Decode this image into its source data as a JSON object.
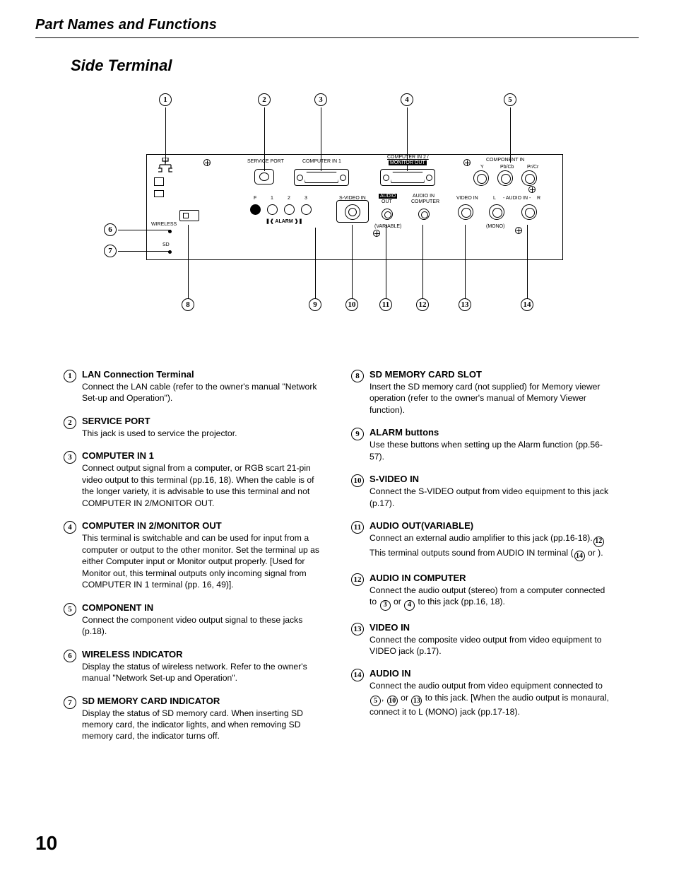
{
  "header": {
    "title": "Part Names and Functions"
  },
  "section": {
    "title": "Side Terminal"
  },
  "page_number": "10",
  "diagram": {
    "panel_labels": {
      "service_port": "SERVICE PORT",
      "computer_in_1": "COMPUTER IN 1",
      "computer_in_2a": "COMPUTER IN 2 /",
      "computer_in_2b": "MONITOR OUT",
      "component_in": "COMPONENT IN",
      "y": "Y",
      "pbcb": "Pb/Cb",
      "prcr": "Pr/Cr",
      "f": "F",
      "n1": "1",
      "n2": "2",
      "n3": "3",
      "alarm": "ALARM",
      "svideo_in": "S-VIDEO IN",
      "audio_out": "AUDIO",
      "audio_out2": "OUT",
      "variable": "(VARIABLE)",
      "audio_in_comp": "AUDIO IN",
      "audio_in_comp2": "COMPUTER",
      "video_in": "VIDEO IN",
      "audio_in_l": "L",
      "audio_in": "AUDIO IN",
      "audio_in_r": "R",
      "mono": "(MONO)",
      "wireless": "WIRELESS",
      "sd": "SD"
    },
    "callouts": {
      "c1": "1",
      "c2": "2",
      "c3": "3",
      "c4": "4",
      "c5": "5",
      "c6": "6",
      "c7": "7",
      "c8": "8",
      "c9": "9",
      "c10": "10",
      "c11": "11",
      "c12": "12",
      "c13": "13",
      "c14": "14"
    }
  },
  "items_left": [
    {
      "num": "1",
      "title": "LAN Connection Terminal",
      "body": "Connect the LAN cable (refer to the owner's manual \"Network Set-up and Operation\")."
    },
    {
      "num": "2",
      "title": "SERVICE PORT",
      "body": "This jack is used to service the projector."
    },
    {
      "num": "3",
      "title": "COMPUTER IN 1",
      "body": "Connect output signal from a computer, or RGB scart 21-pin video output to this terminal (pp.16, 18). When the cable is of the longer variety, it is advisable to use this terminal and not COMPUTER IN 2/MONITOR OUT."
    },
    {
      "num": "4",
      "title": "COMPUTER IN 2/MONITOR OUT",
      "body": "This terminal is switchable and can be used for input from a computer or output to the other monitor. Set the terminal up as either Computer input or Monitor output properly. [Used for Monitor out, this terminal outputs only incoming signal from COMPUTER IN 1 terminal (pp. 16, 49)]."
    },
    {
      "num": "5",
      "title": "COMPONENT IN",
      "body": "Connect the component video output signal to these jacks (p.18)."
    },
    {
      "num": "6",
      "title": "WIRELESS INDICATOR",
      "body": "Display the status of wireless network. Refer to the owner's manual \"Network Set-up and Operation\"."
    },
    {
      "num": "7",
      "title": "SD MEMORY CARD INDICATOR",
      "body": "Display the status of SD memory card.  When inserting SD memory card, the indicator lights, and when removing SD memory card, the indicator turns off."
    }
  ],
  "items_right": [
    {
      "num": "8",
      "title": "SD MEMORY CARD SLOT",
      "body": "Insert the SD memory card (not supplied) for Memory viewer operation (refer to the owner's manual of Memory Viewer function)."
    },
    {
      "num": "9",
      "title": "ALARM buttons",
      "body": "Use these buttons when setting up the Alarm function (pp.56-57)."
    },
    {
      "num": "10",
      "title": "S-VIDEO IN",
      "body": "Connect the S-VIDEO output from video equipment to this jack (p.17)."
    },
    {
      "num": "11",
      "title": "AUDIO OUT(VARIABLE)",
      "body_parts": [
        "Connect an external audio amplifier to this jack (pp.16-18).",
        "This terminal outputs sound from AUDIO IN terminal (",
        " or ",
        ")."
      ],
      "refs": [
        "12",
        "14"
      ]
    },
    {
      "num": "12",
      "title": "AUDIO IN COMPUTER",
      "body_parts": [
        "Connect the audio output (stereo) from a computer connected to ",
        " or ",
        " to this jack (pp.16, 18)."
      ],
      "refs": [
        "3",
        "4"
      ]
    },
    {
      "num": "13",
      "title": "VIDEO IN",
      "body": "Connect the composite video output from video equipment to VIDEO jack (p.17)."
    },
    {
      "num": "14",
      "title": "AUDIO IN",
      "body_parts": [
        "Connect the audio output from video equipment connected to  ",
        ", ",
        " or ",
        " to this jack. [When the audio output is monaural, connect it to L (MONO) jack (pp.17-18)."
      ],
      "refs": [
        "5",
        "10",
        "13"
      ]
    }
  ]
}
